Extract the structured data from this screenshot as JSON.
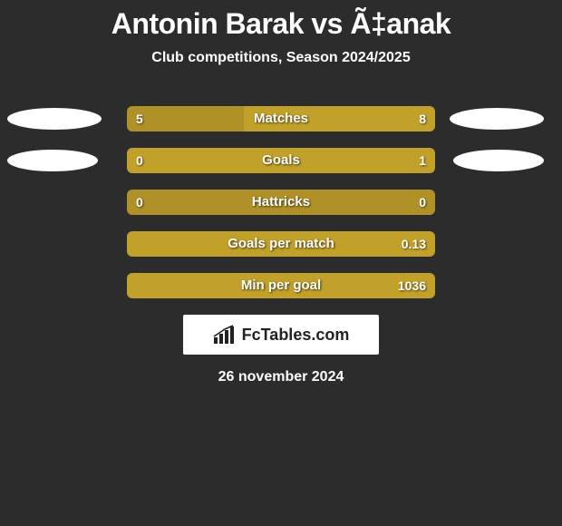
{
  "title": "Antonin Barak vs Ã‡anak",
  "subtitle": "Club competitions, Season 2024/2025",
  "colors": {
    "background": "#2c2c2c",
    "left_fill": "#b09128",
    "right_fill": "#c2a12a",
    "ellipse": "#ffffff",
    "text": "#ffffff",
    "logo_bg": "#ffffff",
    "logo_fg": "#222222"
  },
  "typography": {
    "title_fontsize": 32,
    "title_weight": 900,
    "subtitle_fontsize": 16,
    "label_fontsize": 15,
    "value_fontsize": 14,
    "date_fontsize": 16
  },
  "bar": {
    "track_width": 340,
    "track_height": 28,
    "border_radius": 6,
    "row_gap": 18
  },
  "rows": [
    {
      "label": "Matches",
      "left_value": "5",
      "right_value": "8",
      "left_pct": 38,
      "right_pct": 62,
      "left_ellipse_w": 104,
      "right_ellipse_w": 104,
      "show_left_ellipse": true,
      "show_right_ellipse": true
    },
    {
      "label": "Goals",
      "left_value": "0",
      "right_value": "1",
      "left_pct": 0,
      "right_pct": 100,
      "left_ellipse_w": 100,
      "right_ellipse_w": 100,
      "show_left_ellipse": true,
      "show_right_ellipse": true
    },
    {
      "label": "Hattricks",
      "left_value": "0",
      "right_value": "0",
      "left_pct": 100,
      "right_pct": 0,
      "left_ellipse_w": 0,
      "right_ellipse_w": 0,
      "show_left_ellipse": false,
      "show_right_ellipse": false
    },
    {
      "label": "Goals per match",
      "left_value": "",
      "right_value": "0.13",
      "left_pct": 0,
      "right_pct": 100,
      "left_ellipse_w": 0,
      "right_ellipse_w": 0,
      "show_left_ellipse": false,
      "show_right_ellipse": false
    },
    {
      "label": "Min per goal",
      "left_value": "",
      "right_value": "1036",
      "left_pct": 0,
      "right_pct": 100,
      "left_ellipse_w": 0,
      "right_ellipse_w": 0,
      "show_left_ellipse": false,
      "show_right_ellipse": false
    }
  ],
  "logo": {
    "brand": "FcTables.com"
  },
  "date": "26 november 2024"
}
